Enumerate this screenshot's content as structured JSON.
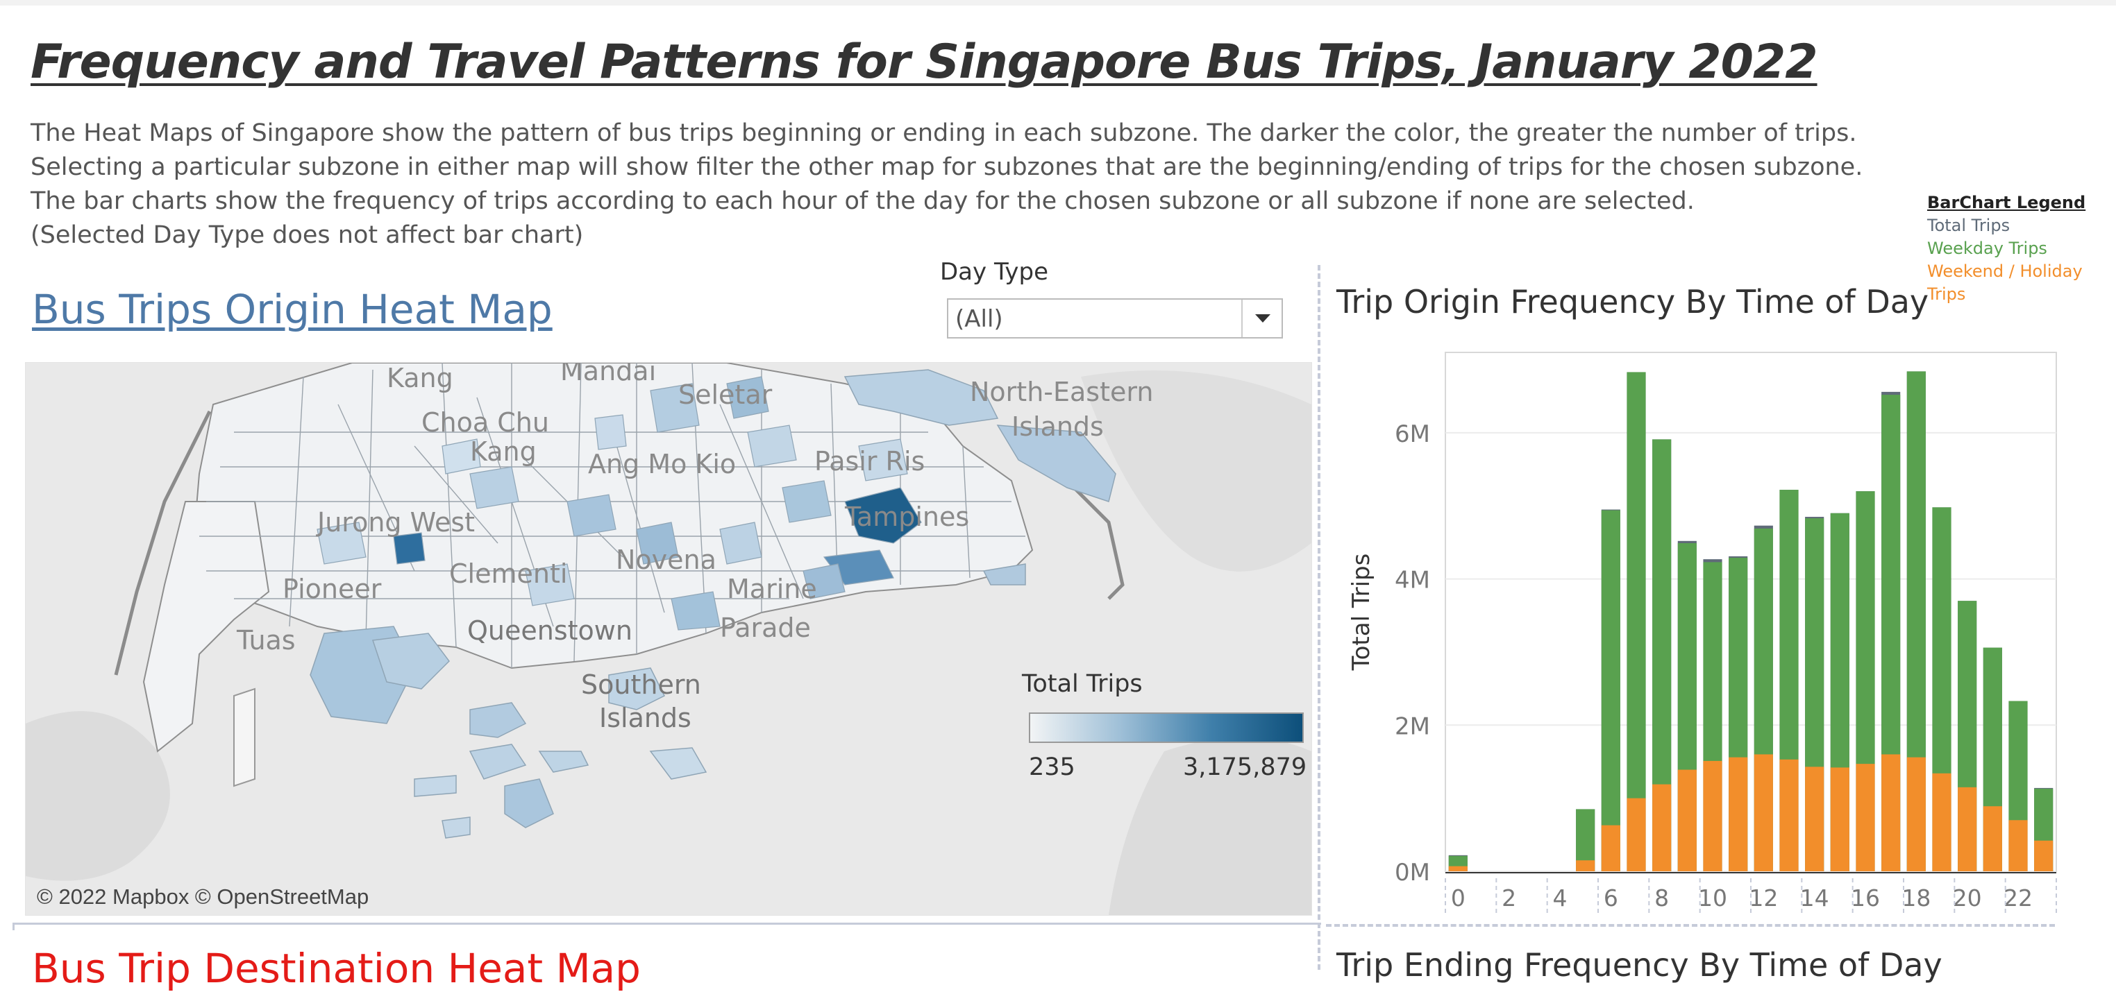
{
  "page": {
    "title": "Frequency and Travel Patterns for Singapore Bus Trips, January 2022",
    "description": [
      "The Heat Maps of Singapore show the pattern of bus trips beginning or ending in each subzone. The darker the color, the greater the number of trips.",
      "Selecting a particular subzone in either map will show filter the other map for subzones that are the beginning/ending of trips for the chosen subzone.",
      "The bar charts show the frequency of trips according to each hour of the day for the chosen subzone or all subzone if none are selected.",
      "(Selected Day Type does not affect bar chart)"
    ]
  },
  "filter": {
    "label": "Day Type",
    "value": "(All)"
  },
  "origin_map": {
    "title": "Bus Trips Origin Heat Map",
    "credit": "© 2022 Mapbox © OpenStreetMap",
    "labels": [
      "Kang",
      "Mandai",
      "Seletar",
      "Choa Chu",
      "Kang",
      "Ang Mo Kio",
      "Pasir Ris",
      "North-Eastern",
      "Islands",
      "Jurong West",
      "Tampines",
      "Pioneer",
      "Clementi",
      "Novena",
      "Marine",
      "Parade",
      "Tuas",
      "Queenstown",
      "Southern",
      "Islands"
    ],
    "legend": {
      "title": "Total Trips",
      "min": "235",
      "max": "3,175,879"
    }
  },
  "bar_legend": {
    "title": "BarChart Legend",
    "items": [
      {
        "label": "Total Trips",
        "color": "#5f6b78"
      },
      {
        "label": "Weekday Trips",
        "color": "#59a14f"
      },
      {
        "label": "Weekend / Holiday",
        "color": "#f28e2b"
      },
      {
        "label": "Trips",
        "color": "#f28e2b"
      }
    ]
  },
  "bar_chart_origin": {
    "title": "Trip Origin Frequency By Time of Day"
  },
  "destination_map": {
    "title": "Bus Trip Destination Heat Map"
  },
  "bar_chart_ending": {
    "title": "Trip Ending Frequency By Time of Day"
  },
  "chart_data": {
    "type": "bar",
    "title": "Trip Origin Frequency By Time of Day",
    "ylabel": "Total Trips",
    "xlabel": "",
    "ylim": [
      0,
      7100000
    ],
    "yticks": [
      0,
      2000000,
      4000000,
      6000000
    ],
    "ytick_labels": [
      "0M",
      "2M",
      "4M",
      "6M"
    ],
    "xtick_labels": [
      "0",
      "2",
      "4",
      "6",
      "8",
      "10",
      "12",
      "14",
      "16",
      "18",
      "20",
      "22"
    ],
    "categories": [
      0,
      1,
      2,
      3,
      4,
      5,
      6,
      7,
      8,
      9,
      10,
      11,
      12,
      13,
      14,
      15,
      16,
      17,
      18,
      19,
      20,
      21,
      22,
      23
    ],
    "series": [
      {
        "name": "Total Trips",
        "color": "#5f6b78",
        "values": [
          220000,
          0,
          0,
          0,
          0,
          850000,
          4950000,
          6830000,
          5910000,
          4520000,
          4270000,
          4310000,
          4730000,
          5220000,
          4850000,
          4900000,
          5200000,
          6560000,
          6840000,
          4980000,
          3700000,
          3060000,
          2330000,
          1140000
        ]
      },
      {
        "name": "Weekday Trips",
        "color": "#59a14f",
        "values": [
          140000,
          0,
          0,
          0,
          0,
          700000,
          4310000,
          5830000,
          4920000,
          3100000,
          2720000,
          2730000,
          3090000,
          3690000,
          3400000,
          3480000,
          3730000,
          4920000,
          5290000,
          3650000,
          2650000,
          2210000,
          1640000,
          710000
        ]
      },
      {
        "name": "Weekend / Holiday Trips",
        "color": "#f28e2b",
        "values": [
          70000,
          0,
          0,
          0,
          0,
          150000,
          630000,
          1000000,
          1190000,
          1390000,
          1510000,
          1560000,
          1600000,
          1530000,
          1430000,
          1420000,
          1470000,
          1600000,
          1560000,
          1340000,
          1150000,
          890000,
          700000,
          420000
        ]
      }
    ]
  }
}
